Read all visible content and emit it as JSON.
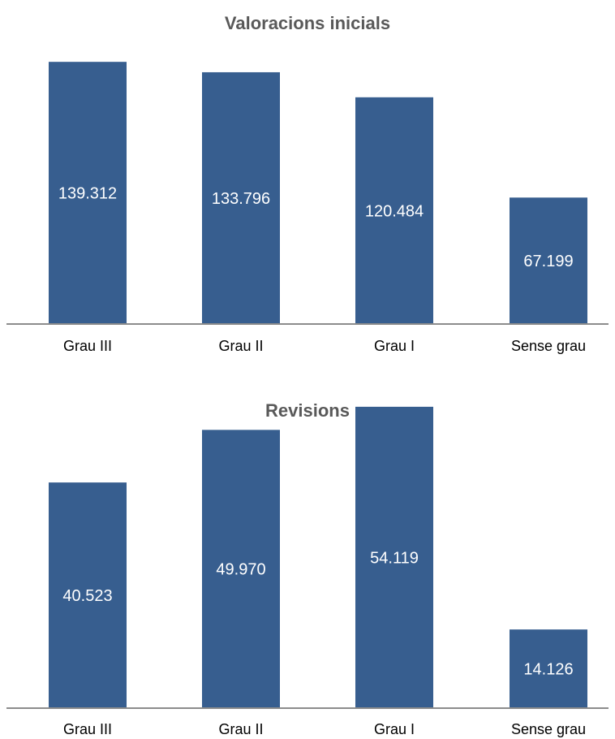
{
  "chart_data": [
    {
      "type": "bar",
      "title": "Valoracions inicials",
      "categories": [
        "Grau III",
        "Grau II",
        "Grau I",
        "Sense grau"
      ],
      "values": [
        139312,
        133796,
        120484,
        67199
      ],
      "data_labels": [
        "139.312",
        "133.796",
        "120.484",
        "67.199"
      ],
      "xlabel": "",
      "ylabel": "",
      "ylim": [
        0,
        145000
      ],
      "grid": false,
      "legend": "none",
      "bar_color": "#375E8F"
    },
    {
      "type": "bar",
      "title": "Revisions",
      "categories": [
        "Grau III",
        "Grau II",
        "Grau I",
        "Sense grau"
      ],
      "values": [
        40523,
        49970,
        54119,
        14126
      ],
      "data_labels": [
        "40.523",
        "49.970",
        "54.119",
        "14.126"
      ],
      "xlabel": "",
      "ylabel": "",
      "ylim": [
        0,
        56000
      ],
      "grid": false,
      "legend": "none",
      "bar_color": "#375E8F"
    }
  ]
}
